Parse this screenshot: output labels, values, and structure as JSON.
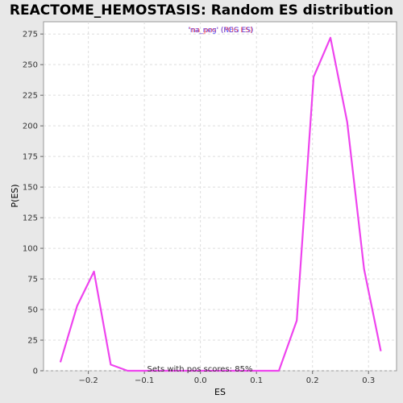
{
  "chart_data": {
    "type": "line",
    "title": "REACTOME_HEMOSTASIS: Random ES distribution",
    "xlabel": "ES",
    "ylabel": "P(ES)",
    "xlim": [
      -0.28,
      0.35
    ],
    "ylim": [
      0,
      285
    ],
    "x_ticks": [
      -0.2,
      -0.1,
      0.0,
      0.1,
      0.2,
      0.3
    ],
    "x_tick_labels": [
      "−0.2",
      "−0.1",
      "0.0",
      "0.1",
      "0.2",
      "0.3"
    ],
    "y_ticks": [
      0,
      25,
      50,
      75,
      100,
      125,
      150,
      175,
      200,
      225,
      250,
      275
    ],
    "grid": true,
    "legend": {
      "placement": "top-center",
      "entries": [
        {
          "label": "'na_pos' (POS ES)",
          "color": "#ff4040"
        },
        {
          "label": "'na_neg' (NEG ES)",
          "color": "#4040ff"
        }
      ]
    },
    "annotation": "Sets with pos scores: 85%",
    "series": [
      {
        "color": "#ee44ee",
        "x": [
          -0.25,
          -0.22,
          -0.19,
          -0.16,
          -0.13,
          -0.1,
          -0.07,
          -0.04,
          -0.01,
          0.02,
          0.05,
          0.08,
          0.11,
          0.14,
          0.172,
          0.202,
          0.232,
          0.262,
          0.292,
          0.322
        ],
        "y": [
          7,
          53,
          81,
          5,
          0,
          0,
          0,
          0,
          0,
          0,
          0,
          0,
          0,
          0,
          41,
          240,
          272,
          203,
          83,
          16
        ]
      }
    ]
  }
}
